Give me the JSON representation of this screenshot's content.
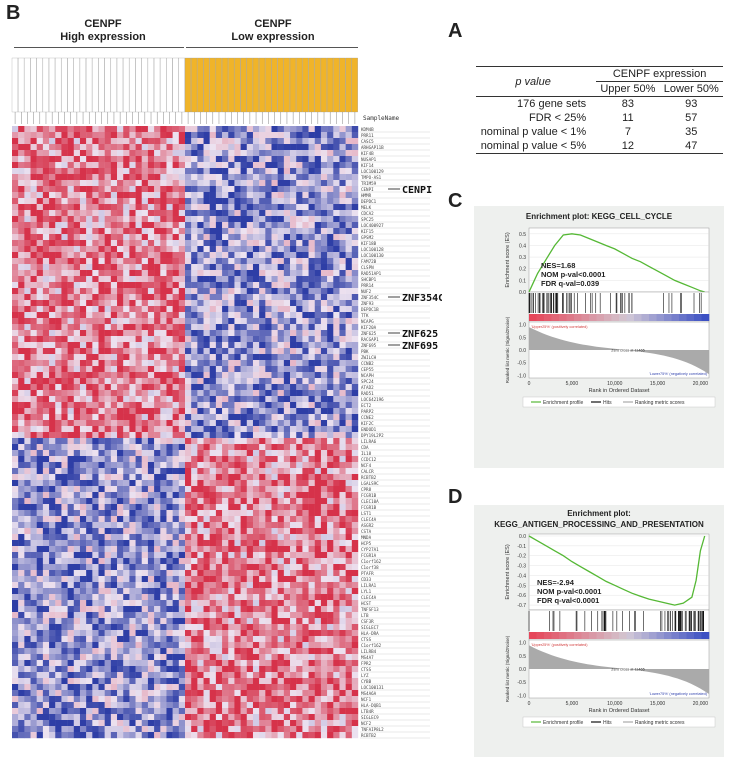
{
  "panels": {
    "B": "B",
    "A": "A",
    "C": "C",
    "D": "D"
  },
  "heatmap": {
    "group_high": {
      "line1": "CENPF",
      "line2": "High expression"
    },
    "group_low": {
      "line1": "CENPF",
      "line2": "Low expression"
    },
    "sample_header": "SampleName",
    "n_high_samples": 28,
    "n_low_samples": 28,
    "colors": {
      "high": "#d6324a",
      "low": "#2e3ea6",
      "mid": "#e8e0f0",
      "low_group_header": "#f0b429"
    },
    "genes": [
      "KDM4B",
      "PRR11",
      "CASC5",
      "ARHGAP11B",
      "KIF4B",
      "NUSAP1",
      "KIF14",
      "LOC100129",
      "TMPO-AS1",
      "TRIM59",
      "CENPI",
      "HMMR",
      "DEPDC1",
      "MELK",
      "CDCA2",
      "SPC25",
      "LOC400927",
      "KIF15",
      "GPSM2",
      "KIF18B",
      "LOC100128",
      "LOC100130",
      "FAM72B",
      "CLSPN",
      "RAD51AP1",
      "SHCBP1",
      "PRR14",
      "NUF2",
      "ZNF354C",
      "ZNF93",
      "DEPDC1B",
      "TTK",
      "NCAPG",
      "KIF20A",
      "ZNF625",
      "RACGAP1",
      "ZNF695",
      "PBK",
      "ZWILCH",
      "CCNB2",
      "CEP55",
      "NCAPH",
      "SPC24",
      "ATAD2",
      "RAD51",
      "LOC642196",
      "ECT2",
      "PARP2",
      "CCNE2",
      "KIF2C",
      "ENDOD1",
      "DPY19L2P2",
      "LILRA6",
      "CDA",
      "IL18",
      "CCDC12",
      "NCF4",
      "CALCR",
      "RCBTB2",
      "LGALS9C",
      "CPR8",
      "FCGR1B",
      "CLEC10A",
      "FCGR1B",
      "LST1",
      "CLEC4A",
      "ASGR2",
      "CSTA",
      "MNDA",
      "HCP5",
      "CYP27A1",
      "FCGR1A",
      "C1orf162",
      "C1orf38",
      "PTAFR",
      "CD33",
      "LILRA1",
      "LYL1",
      "CLEC4A",
      "HCST",
      "TNFSF13",
      "LTB",
      "CSF3R",
      "SIGLEC7",
      "HLA-DRA",
      "CTSS",
      "C1orf162",
      "LILRB4",
      "MS4A7",
      "FPR2",
      "CTSS",
      "LYZ",
      "CYBB",
      "LOC100131",
      "MS4A6A",
      "NCF1",
      "HLA-DQB1",
      "LTB4R",
      "SIGLEC9",
      "NCF2",
      "TNFAIP8L2",
      "RCBTB2"
    ],
    "labeled_genes": [
      {
        "gene_index": 10,
        "label": "CENPI"
      },
      {
        "gene_index": 28,
        "label": "ZNF354C"
      },
      {
        "gene_index": 34,
        "label": "ZNF625"
      },
      {
        "gene_index": 36,
        "label": "ZNF695"
      }
    ],
    "n_up_genes": 52
  },
  "tableA": {
    "header_left": "p value",
    "header_group": "CENPF expression",
    "col1": "Upper 50%",
    "col2": "Lower 50%",
    "rows": [
      {
        "label": "176 gene sets",
        "upper": "83",
        "lower": "93"
      },
      {
        "label": "FDR < 25%",
        "upper": "11",
        "lower": "57"
      },
      {
        "label": "nominal p value < 1%",
        "upper": "7",
        "lower": "35"
      },
      {
        "label": "nominal p value < 5%",
        "upper": "12",
        "lower": "47"
      }
    ]
  },
  "gseaC": {
    "title": "Enrichment plot: KEGG_CELL_CYCLE",
    "ylabel_top": "Enrichment score (ES)",
    "ylabel_bottom": "Ranked list metric (Signal2Noise)",
    "xlabel": "Rank in Ordered Dataset",
    "stats": [
      "NES=1.68",
      "NOM p-val<0.0001",
      "FDR q-val=0.039"
    ],
    "pos_label": "'Upper25%' (positively correlated)",
    "neg_label": "'Lower75%' (negatively correlated)",
    "zero_cross": "Zero cross at 11465",
    "legend": [
      "Enrichment profile",
      "Hits",
      "Ranking metric scores"
    ],
    "es_ticks": [
      "0.5",
      "0.4",
      "0.3",
      "0.2",
      "0.1",
      "0.0"
    ],
    "metric_ticks": [
      "1.0",
      "0.5",
      "0.0",
      "-0.5",
      "-1.0"
    ],
    "x_ticks": [
      "0",
      "5,000",
      "10,000",
      "15,000",
      "20,000"
    ],
    "chart_data": {
      "type": "line",
      "x": [
        0,
        500,
        1000,
        2000,
        3000,
        4000,
        5000,
        6000,
        7000,
        8000,
        9000,
        10000,
        11000,
        12000,
        13000,
        14000,
        15000,
        16000,
        17000,
        18000,
        19000,
        20000,
        20500
      ],
      "y": [
        0,
        0.08,
        0.16,
        0.28,
        0.4,
        0.49,
        0.5,
        0.49,
        0.46,
        0.43,
        0.4,
        0.37,
        0.33,
        0.29,
        0.26,
        0.22,
        0.18,
        0.14,
        0.1,
        0.07,
        0.04,
        0.01,
        0
      ],
      "xlim": [
        0,
        21000
      ],
      "ylim": [
        0,
        0.55
      ],
      "hits_ranges": [
        [
          0,
          5500,
          "dense"
        ],
        [
          5500,
          12000,
          "medium"
        ],
        [
          12000,
          20500,
          "sparse"
        ]
      ]
    }
  },
  "gseaD": {
    "title1": "Enrichment plot:",
    "title2": "KEGG_ANTIGEN_PROCESSING_AND_PRESENTATION",
    "ylabel_top": "Enrichment score (ES)",
    "ylabel_bottom": "Ranked list metric (Signal2Noise)",
    "xlabel": "Rank in Ordered Dataset",
    "stats": [
      "NES=-2.94",
      "NOM p-val<0.0001",
      "FDR q-val<0.0001"
    ],
    "pos_label": "'Upper25%' (positively correlated)",
    "neg_label": "'Lower75%' (negatively correlated)",
    "zero_cross": "Zero cross at 11465",
    "legend": [
      "Enrichment profile",
      "Hits",
      "Ranking metric scores"
    ],
    "es_ticks": [
      "0.0",
      "-0.1",
      "-0.2",
      "-0.3",
      "-0.4",
      "-0.5",
      "-0.6",
      "-0.7"
    ],
    "metric_ticks": [
      "1.0",
      "0.5",
      "0.0",
      "-0.5",
      "-1.0"
    ],
    "x_ticks": [
      "0",
      "5,000",
      "10,000",
      "15,000",
      "20,000"
    ],
    "chart_data": {
      "type": "line",
      "x": [
        0,
        1000,
        2000,
        3000,
        4000,
        5000,
        6000,
        7000,
        8000,
        9000,
        10000,
        11000,
        12000,
        13000,
        14000,
        15000,
        16000,
        17000,
        18000,
        19000,
        19500,
        20000,
        20500
      ],
      "y": [
        0,
        -0.05,
        -0.1,
        -0.15,
        -0.2,
        -0.26,
        -0.31,
        -0.36,
        -0.41,
        -0.46,
        -0.5,
        -0.54,
        -0.58,
        -0.61,
        -0.64,
        -0.66,
        -0.68,
        -0.7,
        -0.68,
        -0.62,
        -0.45,
        -0.15,
        0
      ],
      "xlim": [
        0,
        21000
      ],
      "ylim": [
        -0.75,
        0.02
      ],
      "hits_ranges": [
        [
          0,
          8000,
          "sparse"
        ],
        [
          8000,
          16000,
          "medium"
        ],
        [
          16000,
          20500,
          "dense"
        ]
      ]
    }
  }
}
